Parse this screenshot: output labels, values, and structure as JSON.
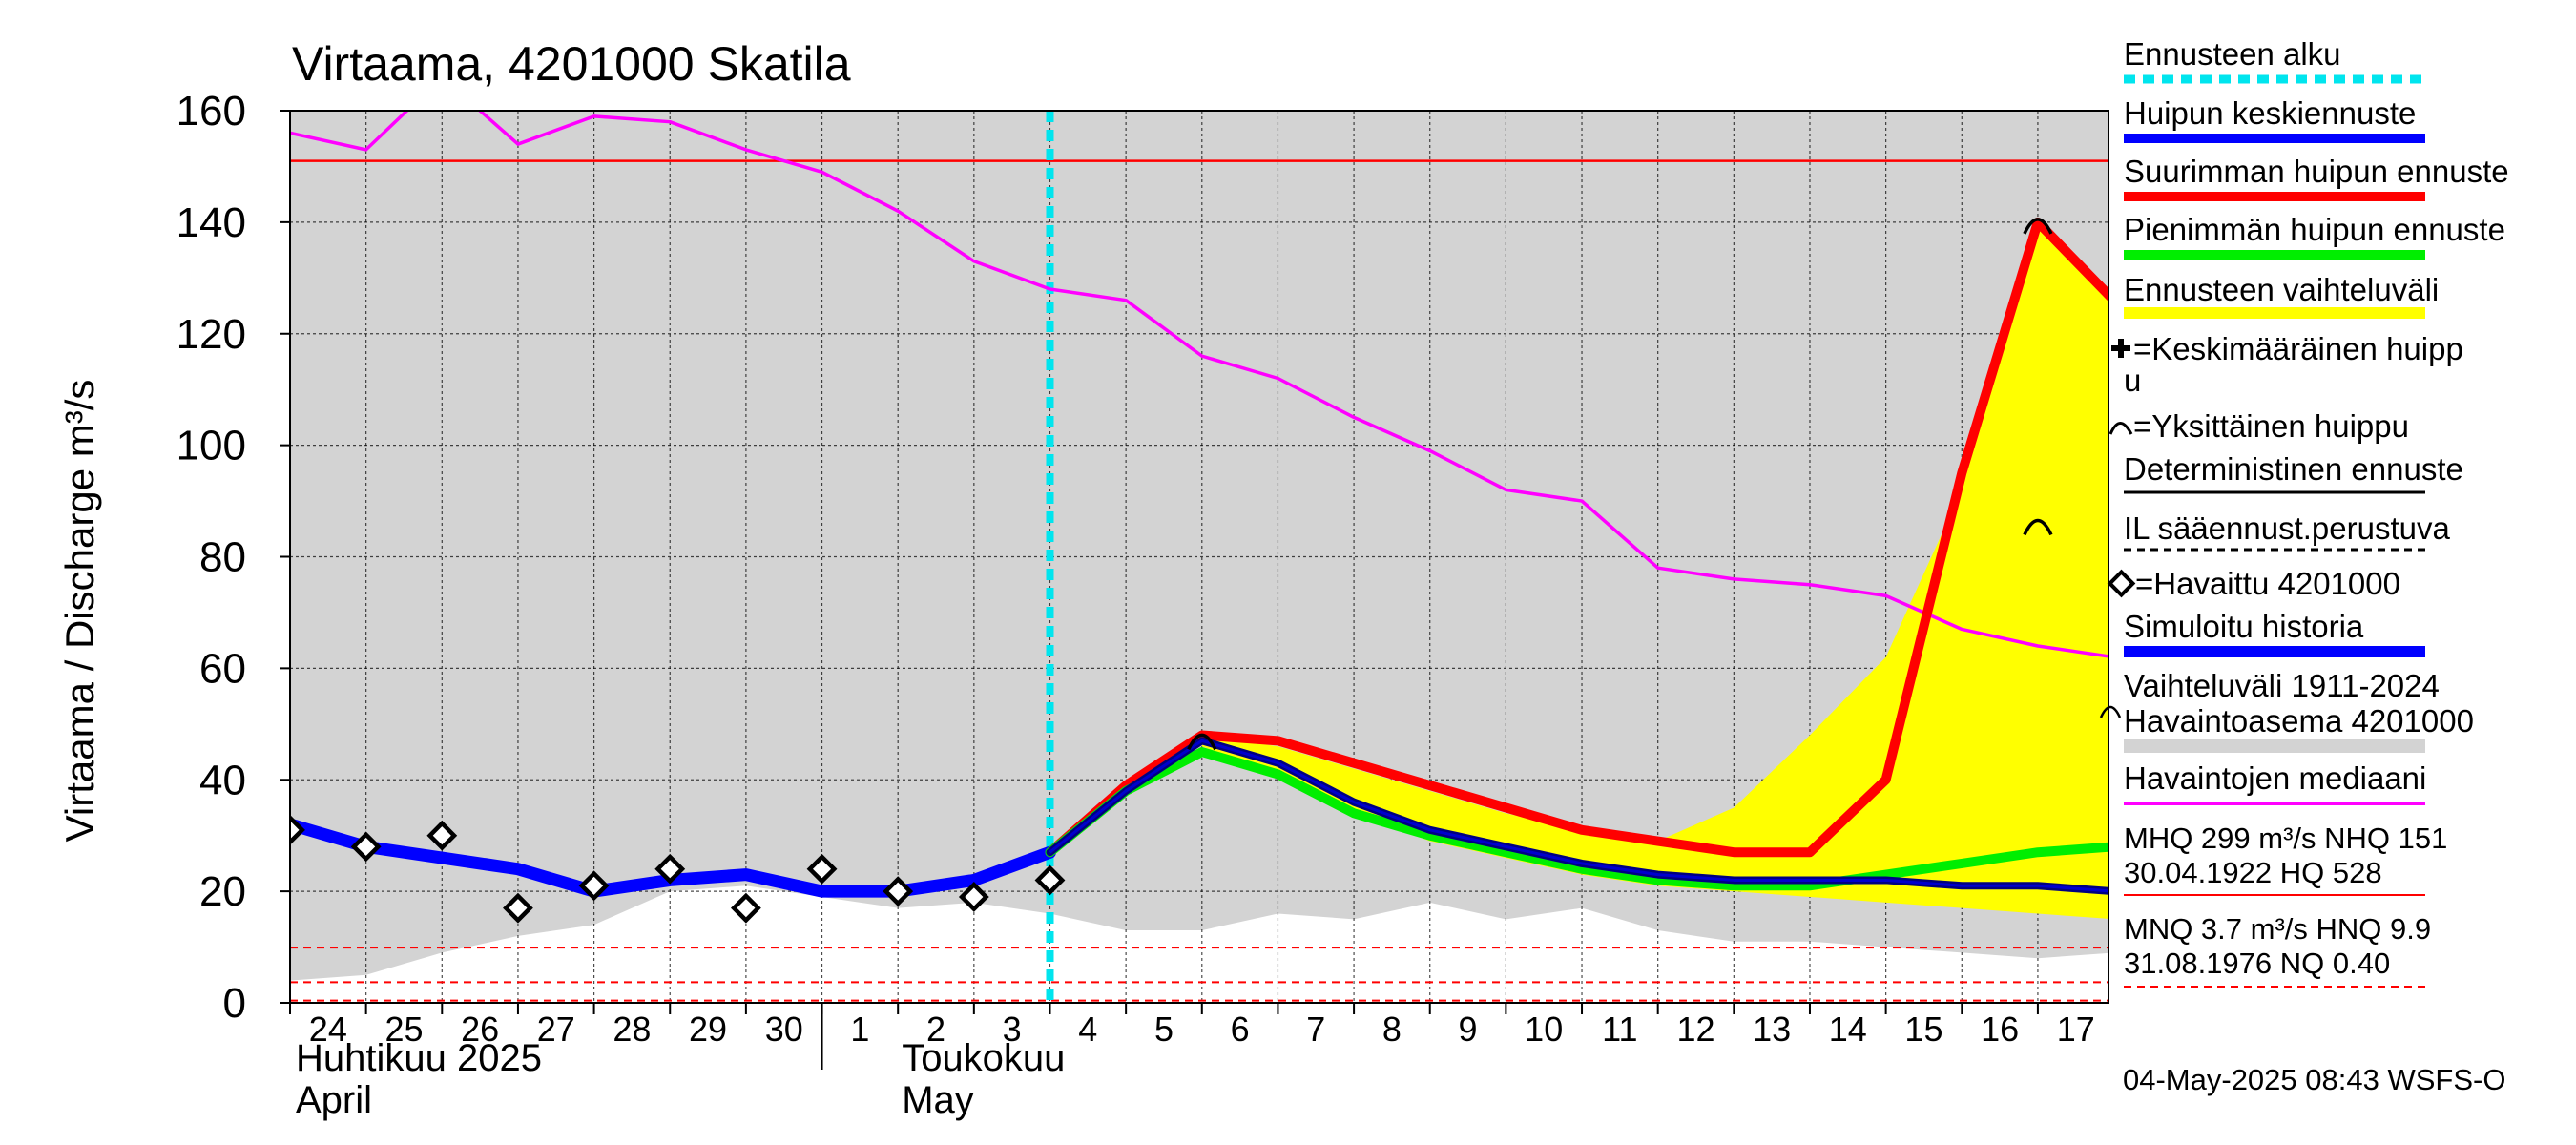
{
  "chart_data": {
    "type": "line",
    "title": "Virtaama, 4201000 Skatila",
    "ylabel": "Virtaama / Discharge    m³/s",
    "ylim": [
      0,
      160
    ],
    "yticks": [
      0,
      20,
      40,
      60,
      80,
      100,
      120,
      140,
      160
    ],
    "xlim_days": [
      "2025-04-24",
      "2025-05-17"
    ],
    "x_ticks": [
      {
        "day": "2025-04-24",
        "label": "24"
      },
      {
        "day": "2025-04-25",
        "label": "25"
      },
      {
        "day": "2025-04-26",
        "label": "26"
      },
      {
        "day": "2025-04-27",
        "label": "27"
      },
      {
        "day": "2025-04-28",
        "label": "28"
      },
      {
        "day": "2025-04-29",
        "label": "29"
      },
      {
        "day": "2025-04-30",
        "label": "30"
      },
      {
        "day": "2025-05-01",
        "label": "1"
      },
      {
        "day": "2025-05-02",
        "label": "2"
      },
      {
        "day": "2025-05-03",
        "label": "3"
      },
      {
        "day": "2025-05-04",
        "label": "4"
      },
      {
        "day": "2025-05-05",
        "label": "5"
      },
      {
        "day": "2025-05-06",
        "label": "6"
      },
      {
        "day": "2025-05-07",
        "label": "7"
      },
      {
        "day": "2025-05-08",
        "label": "8"
      },
      {
        "day": "2025-05-09",
        "label": "9"
      },
      {
        "day": "2025-05-10",
        "label": "10"
      },
      {
        "day": "2025-05-11",
        "label": "11"
      },
      {
        "day": "2025-05-12",
        "label": "12"
      },
      {
        "day": "2025-05-13",
        "label": "13"
      },
      {
        "day": "2025-05-14",
        "label": "14"
      },
      {
        "day": "2025-05-15",
        "label": "15"
      },
      {
        "day": "2025-05-16",
        "label": "16"
      },
      {
        "day": "2025-05-17",
        "label": "17"
      }
    ],
    "month_labels": [
      {
        "day": "2025-04-24",
        "line1": "Huhtikuu  2025",
        "line2": "April"
      },
      {
        "day": "2025-05-02",
        "line1": "Toukokuu",
        "line2": "May"
      }
    ],
    "month_divider_day": "2025-05-01",
    "forecast_start_day": "2025-05-04",
    "grid": true,
    "hq_line": 151,
    "nq_lines": [
      9.9,
      3.7,
      0.4
    ],
    "variation_range": {
      "x": [
        "2025-04-24",
        "2025-04-25",
        "2025-04-26",
        "2025-04-27",
        "2025-04-28",
        "2025-04-29",
        "2025-04-30",
        "2025-05-01",
        "2025-05-02",
        "2025-05-03",
        "2025-05-04",
        "2025-05-05",
        "2025-05-06",
        "2025-05-07",
        "2025-05-08",
        "2025-05-09",
        "2025-05-10",
        "2025-05-11",
        "2025-05-12",
        "2025-05-13",
        "2025-05-14",
        "2025-05-15",
        "2025-05-16",
        "2025-05-17",
        "2025-05-18"
      ],
      "upper": [
        165,
        165,
        165,
        165,
        165,
        165,
        165,
        165,
        165,
        165,
        165,
        165,
        165,
        165,
        165,
        165,
        165,
        165,
        165,
        165,
        165,
        165,
        165,
        165,
        165
      ],
      "lower": [
        4,
        5,
        9,
        12,
        14,
        20,
        21,
        19,
        17,
        18,
        16,
        13,
        13,
        16,
        15,
        18,
        15,
        17,
        13,
        11,
        11,
        10,
        9,
        8,
        9
      ]
    },
    "forecast_range": {
      "x": [
        "2025-05-06",
        "2025-05-07",
        "2025-05-08",
        "2025-05-09",
        "2025-05-10",
        "2025-05-11",
        "2025-05-12",
        "2025-05-13",
        "2025-05-14",
        "2025-05-15",
        "2025-05-16",
        "2025-05-17",
        "2025-05-18"
      ],
      "upper": [
        48,
        46,
        42,
        38,
        34,
        31,
        29,
        35,
        48,
        62,
        92,
        139,
        126
      ],
      "lower": [
        46,
        41,
        34,
        29,
        26,
        23,
        21,
        20,
        19,
        18,
        17,
        16,
        15
      ]
    },
    "series": [
      {
        "name": "Havaintojen mediaani",
        "color": "#ff00ff",
        "x": [
          "2025-04-24",
          "2025-04-25",
          "2025-04-26",
          "2025-04-27",
          "2025-04-28",
          "2025-04-29",
          "2025-04-30",
          "2025-05-01",
          "2025-05-02",
          "2025-05-03",
          "2025-05-04",
          "2025-05-05",
          "2025-05-06",
          "2025-05-07",
          "2025-05-08",
          "2025-05-09",
          "2025-05-10",
          "2025-05-11",
          "2025-05-12",
          "2025-05-13",
          "2025-05-14",
          "2025-05-15",
          "2025-05-16",
          "2025-05-17",
          "2025-05-18"
        ],
        "y": [
          156,
          153,
          166,
          154,
          159,
          158,
          153,
          149,
          142,
          133,
          128,
          126,
          116,
          112,
          105,
          99,
          92,
          90,
          78,
          76,
          75,
          73,
          67,
          64,
          62
        ]
      },
      {
        "name": "Simuloitu historia",
        "color": "#0000ff",
        "x": [
          "2025-04-24",
          "2025-04-25",
          "2025-04-26",
          "2025-04-27",
          "2025-04-28",
          "2025-04-29",
          "2025-04-30",
          "2025-05-01",
          "2025-05-02",
          "2025-05-03",
          "2025-05-04"
        ],
        "y": [
          32,
          28,
          26,
          24,
          20,
          22,
          23,
          20,
          20,
          22,
          27
        ]
      },
      {
        "name": "Suurimman huipun ennuste",
        "color": "#ff0000",
        "x": [
          "2025-05-04",
          "2025-05-05",
          "2025-05-06",
          "2025-05-07",
          "2025-05-08",
          "2025-05-09",
          "2025-05-10",
          "2025-05-11",
          "2025-05-12",
          "2025-05-13",
          "2025-05-14",
          "2025-05-15",
          "2025-05-16",
          "2025-05-17",
          "2025-05-18"
        ],
        "y": [
          27,
          39,
          48,
          47,
          43,
          39,
          35,
          31,
          29,
          27,
          27,
          40,
          95,
          140,
          126
        ]
      },
      {
        "name": "Pienimmän huipun ennuste",
        "color": "#00ee00",
        "x": [
          "2025-05-04",
          "2025-05-05",
          "2025-05-06",
          "2025-05-07",
          "2025-05-08",
          "2025-05-09",
          "2025-05-10",
          "2025-05-11",
          "2025-05-12",
          "2025-05-13",
          "2025-05-14",
          "2025-05-15",
          "2025-05-16",
          "2025-05-17",
          "2025-05-18"
        ],
        "y": [
          27,
          38,
          45,
          41,
          34,
          30,
          27,
          24,
          22,
          21,
          21,
          23,
          25,
          27,
          28
        ]
      },
      {
        "name": "Huipun keskiennuste",
        "color": "#000080",
        "x": [
          "2025-05-04",
          "2025-05-05",
          "2025-05-06",
          "2025-05-07",
          "2025-05-08",
          "2025-05-09",
          "2025-05-10",
          "2025-05-11",
          "2025-05-12",
          "2025-05-13",
          "2025-05-14",
          "2025-05-15",
          "2025-05-16",
          "2025-05-17",
          "2025-05-18"
        ],
        "y": [
          27,
          38,
          47,
          43,
          36,
          31,
          28,
          25,
          23,
          22,
          22,
          22,
          21,
          21,
          20
        ]
      }
    ],
    "observed": {
      "name": "Havaittu 4201000",
      "x": [
        "2025-04-24",
        "2025-04-25",
        "2025-04-26",
        "2025-04-27",
        "2025-04-28",
        "2025-04-29",
        "2025-04-30",
        "2025-05-01",
        "2025-05-02",
        "2025-05-03",
        "2025-05-04"
      ],
      "y": [
        31,
        28,
        30,
        17,
        21,
        24,
        17,
        24,
        20,
        19,
        22
      ]
    },
    "peak_markers": [
      {
        "day": "2025-05-06",
        "y": 47.5
      },
      {
        "day": "2025-05-17",
        "y": 140
      },
      {
        "day": "2025-05-17",
        "y": 86
      }
    ]
  },
  "legend": {
    "forecast_start": "Ennusteen alku",
    "mean_peak": "Huipun keskiennuste",
    "max_peak": "Suurimman huipun ennuste",
    "min_peak": "Pienimmän huipun ennuste",
    "forecast_range": "Ennusteen vaihteluväli",
    "mean_peak_marker_line1": "=Keskimääräinen huipp",
    "mean_peak_marker_line2": "u",
    "single_peak_marker": "=Yksittäinen huippu",
    "deterministic": "Deterministinen ennuste",
    "il_forecast": "IL sääennust.perustuva",
    "observed": "=Havaittu 4201000",
    "simulated": "Simuloitu historia",
    "variation_line1": "Vaihteluväli 1911-2024",
    "variation_line2": " Havaintoasema 4201000",
    "median": "Havaintojen mediaani",
    "mhq_line1": "MHQ  299 m³/s NHQ  151",
    "mhq_line2": "30.04.1922 HQ  528",
    "mnq_line1": "MNQ  3.7 m³/s HNQ  9.9",
    "mnq_line2": "31.08.1976 NQ 0.40"
  },
  "colors": {
    "forecast_start": "#00e5ee",
    "mean_peak": "#0000ff",
    "max_peak": "#ff0000",
    "min_peak": "#00ee00",
    "forecast_range": "#ffff00",
    "variation": "#d3d3d3",
    "median": "#ff00ff",
    "simulated": "#0000ff",
    "mean_forecast": "#000080"
  },
  "footer": {
    "timestamp": "04-May-2025 08:43 WSFS-O"
  }
}
